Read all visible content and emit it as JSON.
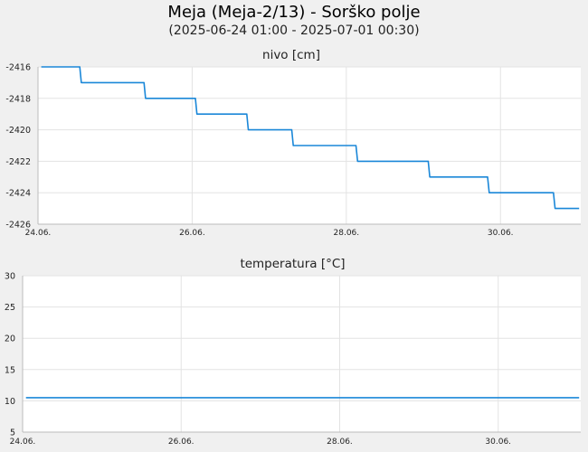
{
  "title": "Meja (Meja-2/13) - Sorško polje",
  "subtitle": "(2025-06-24 01:00 - 2025-07-01 00:30)",
  "colors": {
    "line": "#1a87d8",
    "background": "#f0f0f0",
    "plot_background": "#ffffff"
  },
  "chart_data": [
    {
      "type": "line",
      "title": "nivo [cm]",
      "ylim": [
        -2426,
        -2416
      ],
      "yticks": [
        -2416,
        -2418,
        -2420,
        -2422,
        -2424,
        -2426
      ],
      "xlim": [
        "2025-06-24 00:00",
        "2025-07-01 01:00"
      ],
      "xticks": [
        "24.06.",
        "26.06.",
        "28.06.",
        "30.06."
      ],
      "grid": true,
      "series": [
        {
          "x": [
            "2025-06-24 01:00",
            "2025-06-24 13:00",
            "2025-06-24 13:30",
            "2025-06-25 09:00",
            "2025-06-25 09:30",
            "2025-06-26 01:00",
            "2025-06-26 01:30",
            "2025-06-26 17:00",
            "2025-06-26 17:30",
            "2025-06-27 07:00",
            "2025-06-27 07:30",
            "2025-06-28 03:00",
            "2025-06-28 03:30",
            "2025-06-29 01:30",
            "2025-06-29 02:00",
            "2025-06-29 20:00",
            "2025-06-29 20:30",
            "2025-06-30 16:30",
            "2025-06-30 17:00",
            "2025-07-01 00:30"
          ],
          "y": [
            -2416,
            -2416,
            -2417,
            -2417,
            -2418,
            -2418,
            -2419,
            -2419,
            -2420,
            -2420,
            -2421,
            -2421,
            -2422,
            -2422,
            -2423,
            -2423,
            -2424,
            -2424,
            -2425,
            -2425
          ]
        }
      ]
    },
    {
      "type": "line",
      "title": "temperatura [°C]",
      "ylim": [
        5,
        30
      ],
      "yticks": [
        30,
        25,
        20,
        15,
        10,
        5
      ],
      "xlim": [
        "2025-06-24 00:00",
        "2025-07-01 01:00"
      ],
      "xticks": [
        "24.06.",
        "26.06.",
        "28.06.",
        "30.06."
      ],
      "grid": true,
      "series": [
        {
          "x": [
            "2025-06-24 01:00",
            "2025-07-01 00:30"
          ],
          "y": [
            10.5,
            10.5
          ]
        }
      ]
    }
  ]
}
